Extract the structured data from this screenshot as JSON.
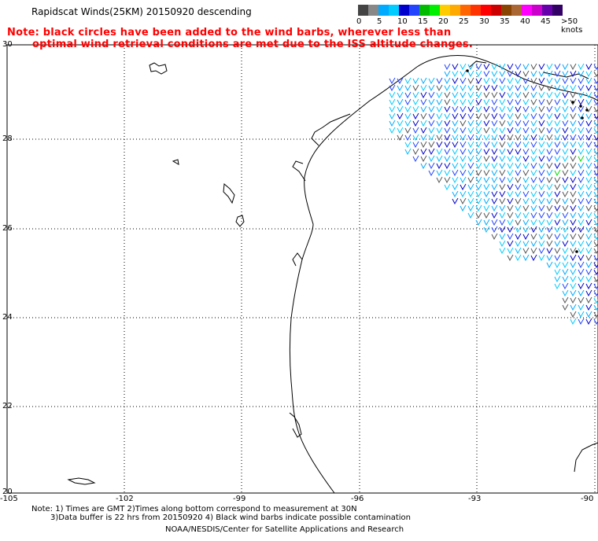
{
  "header": {
    "title": "Rapidscat Winds(25KM) 20150920 descending",
    "note_line1": "Note: black circles have been added to the wind barbs, wherever less than",
    "note_line2": "optimal wind retrieval conditions are met due to the ISS altitude changes."
  },
  "legend": {
    "colors": [
      "#444444",
      "#888888",
      "#00aaff",
      "#00ccff",
      "#0000cc",
      "#2244ff",
      "#00bb00",
      "#00ee00",
      "#ffcc00",
      "#ffaa00",
      "#ff6600",
      "#ff3300",
      "#ff0000",
      "#cc0000",
      "#884400",
      "#aa6633",
      "#ff00ff",
      "#cc00cc",
      "#6600aa",
      "#330066"
    ],
    "labels": [
      "0",
      "5",
      "10",
      "15",
      "20",
      "25",
      "30",
      "35",
      "40",
      "45",
      ">50 knots"
    ]
  },
  "axes": {
    "lat_labels": [
      "30",
      "28",
      "26",
      "24",
      "22",
      "20"
    ],
    "lon_labels": [
      "-105",
      "-102",
      "-99",
      "-96",
      "-93",
      "-90"
    ]
  },
  "footer": {
    "line1": "Note: 1) Times are GMT 2)Times along bottom correspond to measurement at 30N",
    "line2": "3)Data buffer is 22 hrs from 20150920 4) Black wind barbs indicate possible contamination",
    "line3": "NOAA/NESDIS/Center for Satellite Applications and Research"
  }
}
